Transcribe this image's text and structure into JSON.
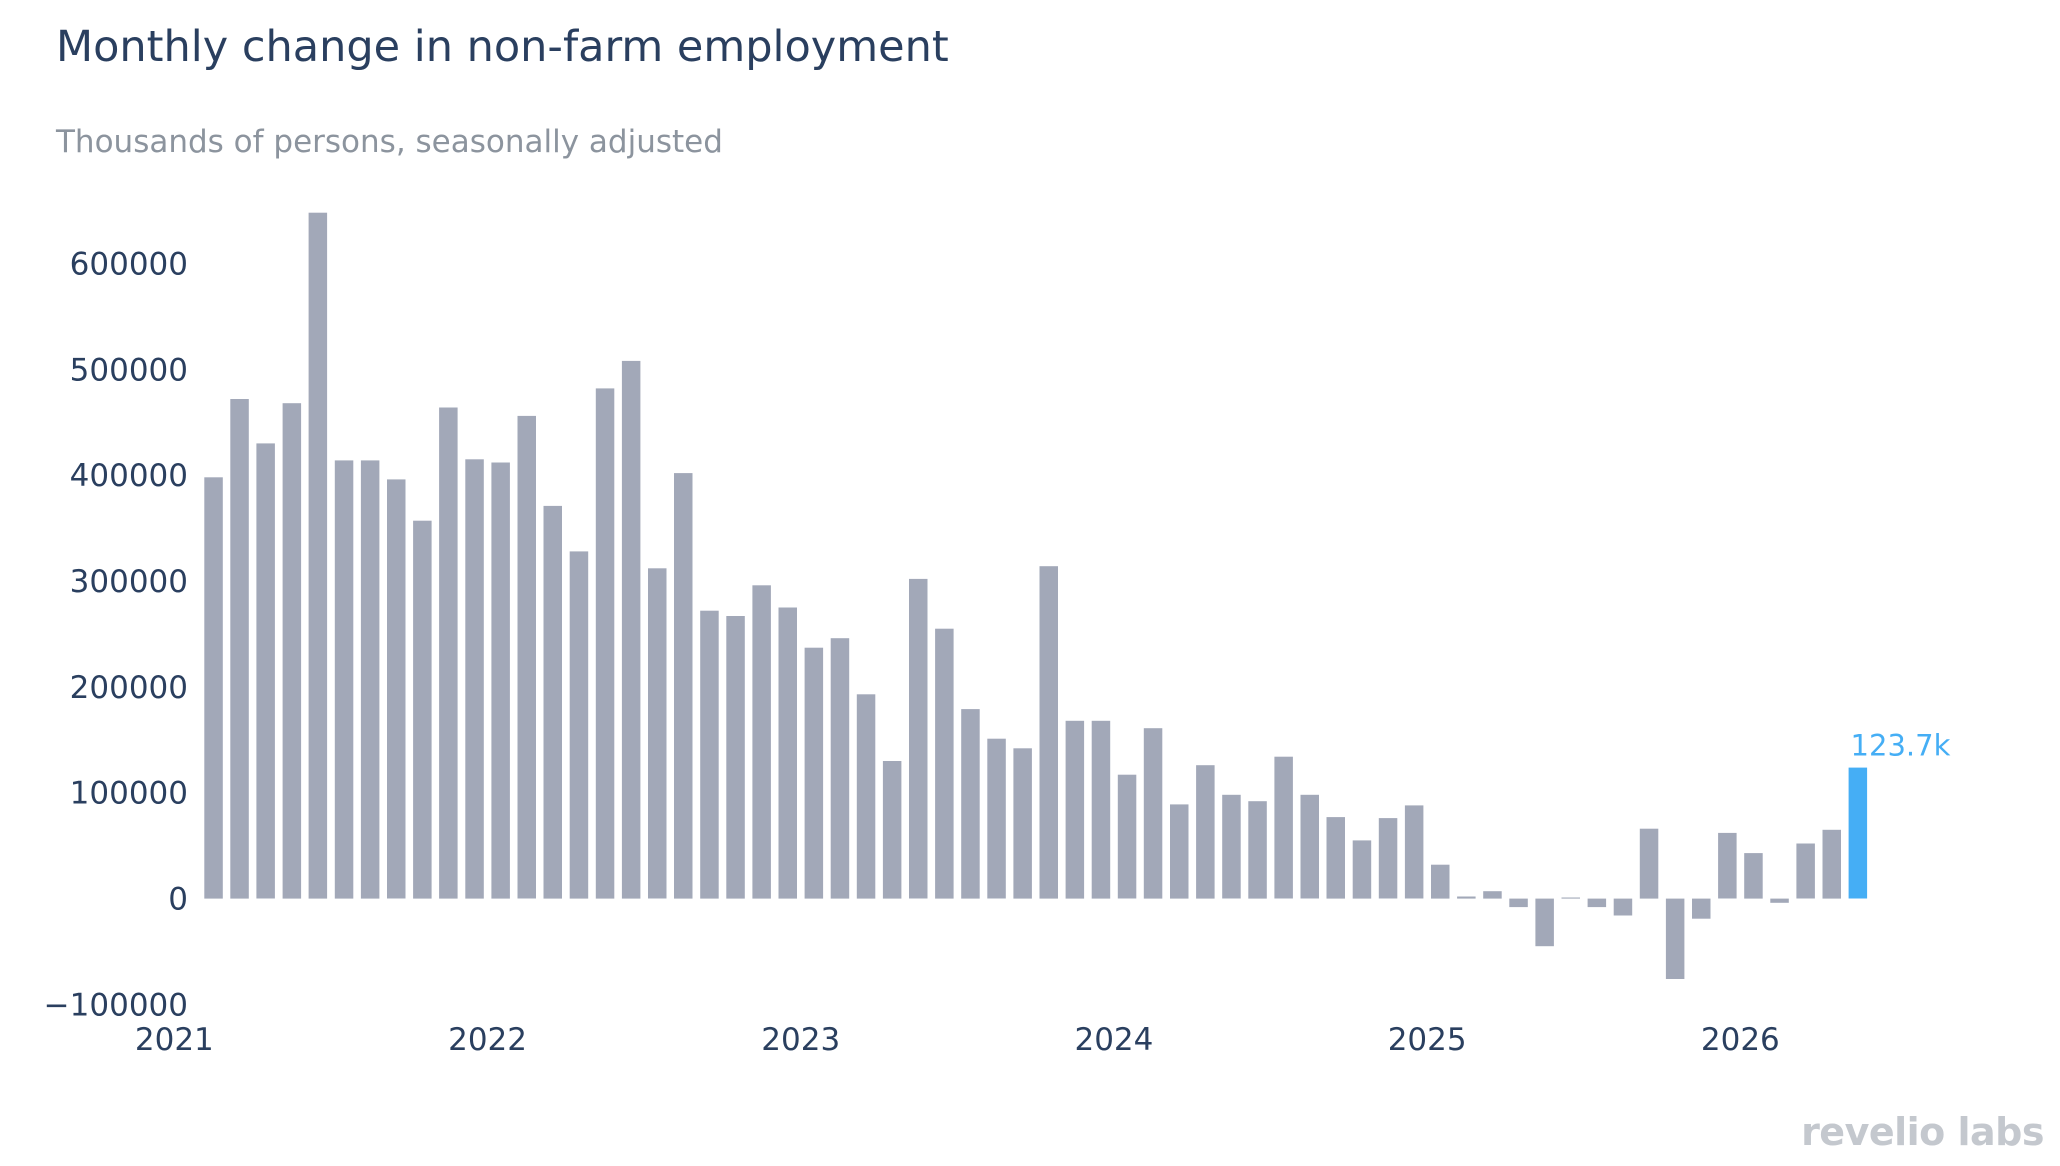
{
  "chart_data": {
    "type": "bar",
    "title": "Monthly change in non-farm employment",
    "subtitle": "Thousands of persons, seasonally adjusted",
    "xlabel": "",
    "ylabel": "",
    "x_start": "2021-02",
    "x_ticks": [
      "2021",
      "2022",
      "2023",
      "2024",
      "2025",
      "2026"
    ],
    "y_ticks": [
      -100000,
      0,
      100000,
      200000,
      300000,
      400000,
      500000,
      600000
    ],
    "y_tick_labels": [
      "−100000",
      "0",
      "100000",
      "200000",
      "300000",
      "400000",
      "500000",
      "600000"
    ],
    "ylim": [
      -110000,
      660000
    ],
    "grid": false,
    "values": [
      398000,
      472000,
      430000,
      468000,
      648000,
      414000,
      414000,
      396000,
      357000,
      464000,
      415000,
      412000,
      456000,
      371000,
      328000,
      482000,
      508000,
      312000,
      402000,
      272000,
      267000,
      296000,
      275000,
      237000,
      246000,
      193000,
      130000,
      302000,
      255000,
      179000,
      151000,
      142000,
      314000,
      168000,
      168000,
      117000,
      161000,
      89000,
      126000,
      98000,
      92000,
      134000,
      98000,
      77000,
      55000,
      76000,
      88000,
      32000,
      2000,
      7000,
      -8000,
      -45000,
      1000,
      -8000,
      -16000,
      66000,
      -76000,
      -19000,
      62000,
      43000,
      -4000,
      52000,
      65000,
      123700
    ],
    "highlight_index": 63,
    "highlight_label": "123.7k",
    "colors": {
      "bar": "#a2a8b8",
      "highlight": "#45aef5",
      "text": "#2a3f5f"
    }
  },
  "brand": {
    "logo_text": "revelio labs"
  }
}
